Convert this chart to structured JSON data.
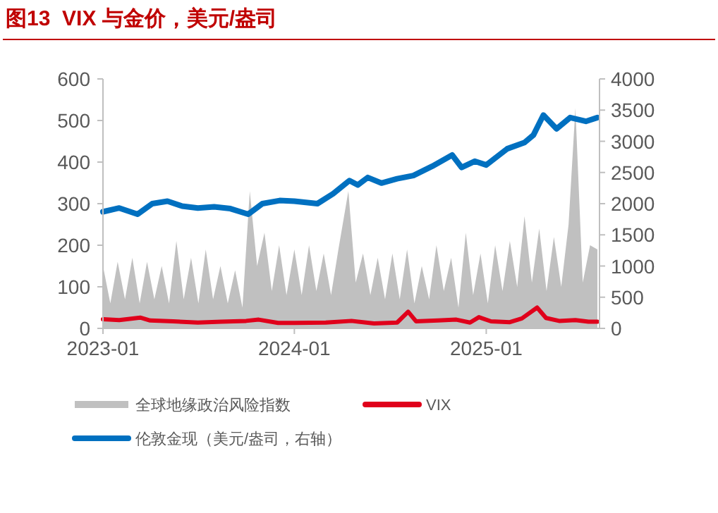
{
  "chart_data": {
    "type": "line",
    "title": "图13  VIX 与金价，美元/盎司",
    "xlim": [
      "2023-01-01",
      "2025-08-05"
    ],
    "xticks": [
      "2023-01",
      "2024-01",
      "2025-01"
    ],
    "ylim": [
      0,
      600
    ],
    "yticks": [
      0,
      100,
      200,
      300,
      400,
      500,
      600
    ],
    "y2lim": [
      0,
      4000
    ],
    "y2ticks": [
      0,
      500,
      1000,
      1500,
      2000,
      2500,
      3000,
      3500,
      4000
    ],
    "legend": "bottom",
    "series": [
      {
        "name": "全球地缘政治风险指数",
        "type": "area",
        "color": "#c0c0c0",
        "x": [
          "2023-01-01",
          "2023-01-15",
          "2023-01-29",
          "2023-02-12",
          "2023-02-26",
          "2023-03-12",
          "2023-03-26",
          "2023-04-09",
          "2023-04-23",
          "2023-05-07",
          "2023-05-21",
          "2023-06-04",
          "2023-06-18",
          "2023-07-02",
          "2023-07-16",
          "2023-07-30",
          "2023-08-13",
          "2023-08-27",
          "2023-09-10",
          "2023-09-24",
          "2023-10-08",
          "2023-10-22",
          "2023-11-05",
          "2023-11-19",
          "2023-12-03",
          "2023-12-17",
          "2024-01-01",
          "2024-01-15",
          "2024-01-29",
          "2024-02-12",
          "2024-02-26",
          "2024-03-11",
          "2024-03-25",
          "2024-04-13",
          "2024-04-27",
          "2024-05-11",
          "2024-05-25",
          "2024-06-08",
          "2024-06-22",
          "2024-07-06",
          "2024-07-20",
          "2024-08-03",
          "2024-08-17",
          "2024-08-31",
          "2024-09-14",
          "2024-09-28",
          "2024-10-12",
          "2024-10-26",
          "2024-11-09",
          "2024-11-23",
          "2024-12-07",
          "2024-12-21",
          "2025-01-04",
          "2025-01-18",
          "2025-02-01",
          "2025-02-15",
          "2025-03-01",
          "2025-03-15",
          "2025-03-29",
          "2025-04-12",
          "2025-04-26",
          "2025-05-10",
          "2025-05-24",
          "2025-06-07",
          "2025-06-20",
          "2025-07-04",
          "2025-07-18",
          "2025-08-01"
        ],
        "values": [
          150,
          60,
          160,
          70,
          170,
          60,
          160,
          70,
          150,
          60,
          210,
          70,
          170,
          60,
          190,
          70,
          150,
          60,
          140,
          50,
          330,
          150,
          230,
          90,
          200,
          80,
          190,
          80,
          200,
          90,
          180,
          80,
          190,
          330,
          110,
          180,
          80,
          170,
          70,
          180,
          70,
          190,
          60,
          150,
          70,
          200,
          90,
          170,
          50,
          230,
          80,
          180,
          60,
          200,
          90,
          210,
          100,
          270,
          110,
          240,
          90,
          220,
          100,
          250,
          530,
          110,
          200,
          190
        ]
      },
      {
        "name": "VIX",
        "type": "line",
        "color": "#e0001b",
        "x": [
          "2023-01-01",
          "2023-02-01",
          "2023-03-13",
          "2023-04-01",
          "2023-05-15",
          "2023-07-01",
          "2023-08-15",
          "2023-10-01",
          "2023-10-25",
          "2023-12-01",
          "2024-01-01",
          "2024-03-01",
          "2024-04-19",
          "2024-06-01",
          "2024-07-15",
          "2024-08-05",
          "2024-08-20",
          "2024-10-01",
          "2024-11-05",
          "2024-12-01",
          "2024-12-18",
          "2025-01-10",
          "2025-02-15",
          "2025-03-10",
          "2025-04-08",
          "2025-04-25",
          "2025-05-20",
          "2025-06-20",
          "2025-07-15",
          "2025-08-01"
        ],
        "values": [
          22,
          20,
          26,
          19,
          17,
          14,
          16,
          18,
          21,
          13,
          13,
          14,
          18,
          12,
          14,
          40,
          17,
          19,
          21,
          14,
          27,
          17,
          15,
          24,
          50,
          25,
          18,
          20,
          16,
          16
        ]
      },
      {
        "name": "伦敦金现（美元/盎司，右轴）",
        "type": "line",
        "axis": "y2",
        "color": "#0070c0",
        "x": [
          "2023-01-01",
          "2023-02-01",
          "2023-03-08",
          "2023-04-05",
          "2023-05-04",
          "2023-06-01",
          "2023-07-01",
          "2023-08-01",
          "2023-09-01",
          "2023-10-05",
          "2023-11-01",
          "2023-12-04",
          "2024-01-01",
          "2024-02-14",
          "2024-03-15",
          "2024-04-15",
          "2024-05-01",
          "2024-05-20",
          "2024-06-15",
          "2024-07-15",
          "2024-08-15",
          "2024-09-20",
          "2024-10-28",
          "2024-11-15",
          "2024-12-10",
          "2025-01-01",
          "2025-02-10",
          "2025-03-15",
          "2025-04-01",
          "2025-04-20",
          "2025-05-15",
          "2025-06-10",
          "2025-07-10",
          "2025-08-01"
        ],
        "values": [
          1870,
          1930,
          1830,
          2000,
          2040,
          1960,
          1930,
          1950,
          1920,
          1830,
          2000,
          2050,
          2040,
          2000,
          2160,
          2370,
          2300,
          2420,
          2330,
          2400,
          2450,
          2600,
          2780,
          2580,
          2680,
          2620,
          2880,
          2980,
          3100,
          3420,
          3200,
          3380,
          3320,
          3380
        ]
      }
    ]
  }
}
